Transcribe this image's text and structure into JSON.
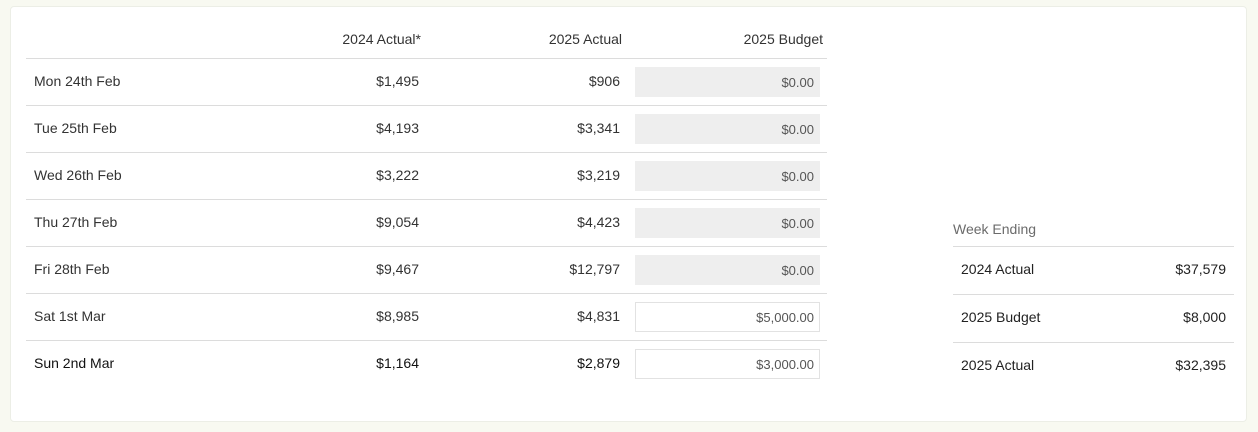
{
  "columns": {
    "actual_2024": "2024 Actual*",
    "actual_2025": "2025 Actual",
    "budget_2025": "2025 Budget"
  },
  "rows": [
    {
      "date": "Mon 24th Feb",
      "actual_2024": "$1,495",
      "actual_2025": "$906",
      "budget_2025": "$0.00",
      "editable": false
    },
    {
      "date": "Tue 25th Feb",
      "actual_2024": "$4,193",
      "actual_2025": "$3,341",
      "budget_2025": "$0.00",
      "editable": false
    },
    {
      "date": "Wed 26th Feb",
      "actual_2024": "$3,222",
      "actual_2025": "$3,219",
      "budget_2025": "$0.00",
      "editable": false
    },
    {
      "date": "Thu 27th Feb",
      "actual_2024": "$9,054",
      "actual_2025": "$4,423",
      "budget_2025": "$0.00",
      "editable": false
    },
    {
      "date": "Fri 28th Feb",
      "actual_2024": "$9,467",
      "actual_2025": "$12,797",
      "budget_2025": "$0.00",
      "editable": false
    },
    {
      "date": "Sat 1st Mar",
      "actual_2024": "$8,985",
      "actual_2025": "$4,831",
      "budget_2025": "$5,000.00",
      "editable": true
    },
    {
      "date": "Sun 2nd Mar",
      "actual_2024": "$1,164",
      "actual_2025": "$2,879",
      "budget_2025": "$3,000.00",
      "editable": true
    }
  ],
  "summary": {
    "title": "Week Ending",
    "items": [
      {
        "label": "2024 Actual",
        "value": "$37,579"
      },
      {
        "label": "2025 Budget",
        "value": "$8,000"
      },
      {
        "label": "2025 Actual",
        "value": "$32,395"
      }
    ]
  }
}
